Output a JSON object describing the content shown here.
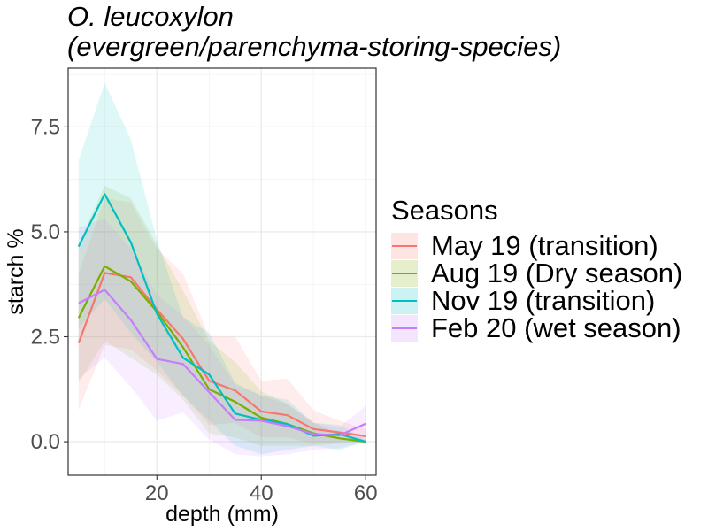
{
  "title": {
    "line1": "O. leucoxylon",
    "line2": "(evergreen/parenchyma-storing-species)"
  },
  "chart_data": {
    "type": "line",
    "title": "O. leucoxylon (evergreen/parenchyma-storing-species)",
    "xlabel": "depth (mm)",
    "ylabel": "starch %",
    "xlim": [
      3,
      62
    ],
    "ylim": [
      -0.8,
      8.9
    ],
    "xticks": [
      20,
      40,
      60
    ],
    "xtick_labels": [
      "20",
      "40",
      "60"
    ],
    "yticks": [
      0,
      2.5,
      5,
      7.5
    ],
    "ytick_labels": [
      "0.0",
      "2.5",
      "5.0",
      "7.5"
    ],
    "grid": true,
    "legend_title": "Seasons",
    "legend_position": "right",
    "x": [
      5,
      10,
      15,
      20,
      25,
      30,
      35,
      40,
      45,
      50,
      55,
      60
    ],
    "series": [
      {
        "name": "May 19 (transition)",
        "color": "#F8766D",
        "values": [
          2.35,
          4.02,
          3.92,
          3.15,
          2.45,
          1.45,
          1.22,
          0.72,
          0.63,
          0.3,
          0.22,
          0.13
        ],
        "lower": [
          0.75,
          2.3,
          2.2,
          1.7,
          1.1,
          0.4,
          0.45,
          0.1,
          0.1,
          -0.05,
          0.0,
          0.0
        ],
        "upper": [
          4.0,
          5.8,
          5.7,
          4.6,
          4.0,
          2.5,
          2.5,
          1.45,
          1.5,
          0.75,
          0.5,
          0.3
        ]
      },
      {
        "name": "Aug 19 (Dry season)",
        "color": "#7CAE00",
        "values": [
          2.95,
          4.18,
          3.82,
          3.1,
          2.25,
          1.25,
          0.95,
          0.57,
          0.42,
          0.2,
          0.08,
          0.0
        ],
        "lower": [
          1.4,
          2.4,
          2.0,
          1.6,
          1.0,
          0.2,
          0.1,
          -0.1,
          -0.1,
          -0.1,
          -0.05,
          0.0
        ],
        "upper": [
          4.7,
          6.1,
          5.8,
          4.7,
          3.6,
          2.4,
          1.9,
          1.2,
          0.9,
          0.45,
          0.2,
          0.05
        ]
      },
      {
        "name": "Nov 19 (transition)",
        "color": "#00BFC4",
        "values": [
          4.65,
          5.9,
          4.75,
          3.05,
          2.0,
          1.6,
          0.67,
          0.52,
          0.42,
          0.14,
          0.18,
          0.0
        ],
        "lower": [
          2.7,
          3.4,
          2.6,
          1.9,
          1.1,
          0.5,
          -0.1,
          -0.3,
          -0.2,
          -0.1,
          -0.2,
          0.0
        ],
        "upper": [
          6.7,
          8.55,
          7.2,
          4.8,
          2.95,
          2.6,
          1.4,
          1.1,
          1.0,
          0.45,
          0.4,
          0.05
        ]
      },
      {
        "name": "Feb 20 (wet season)",
        "color": "#C77CFF",
        "values": [
          3.3,
          3.62,
          2.9,
          1.97,
          1.85,
          1.18,
          0.52,
          0.5,
          0.37,
          0.18,
          0.15,
          0.43
        ],
        "lower": [
          1.5,
          2.0,
          1.3,
          0.5,
          0.7,
          0.05,
          -0.3,
          -0.35,
          -0.3,
          -0.2,
          -0.15,
          0.0
        ],
        "upper": [
          5.1,
          5.3,
          4.6,
          3.5,
          3.0,
          2.3,
          1.35,
          1.1,
          0.9,
          0.45,
          0.35,
          0.85
        ]
      }
    ]
  }
}
